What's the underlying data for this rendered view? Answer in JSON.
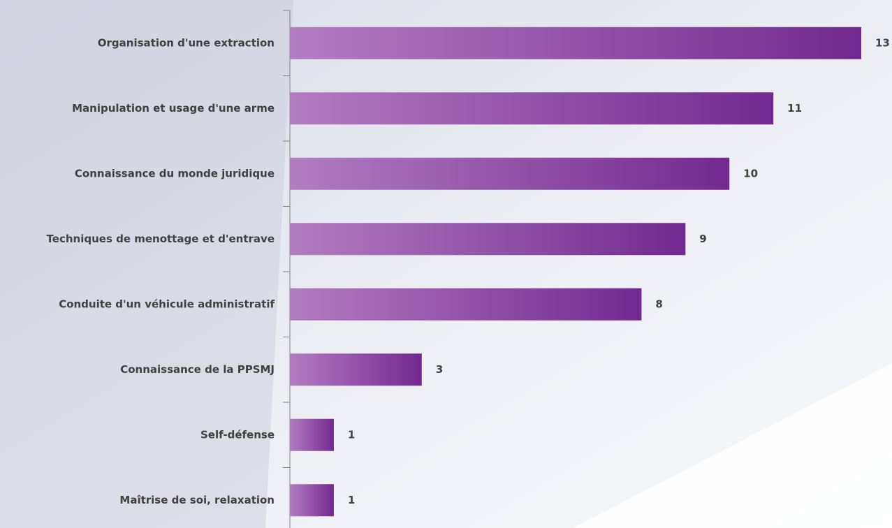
{
  "chart_data": {
    "type": "bar",
    "orientation": "horizontal",
    "categories": [
      "Organisation d'une extraction",
      "Manipulation et usage d'une arme",
      "Connaissance du monde juridique",
      "Techniques de menottage et d'entrave",
      "Conduite d'un véhicule administratif",
      "Connaissance de la PPSMJ",
      "Self-défense",
      "Maîtrise de soi, relaxation"
    ],
    "values": [
      13,
      11,
      10,
      9,
      8,
      3,
      1,
      1
    ],
    "color": "#7b2d93"
  }
}
